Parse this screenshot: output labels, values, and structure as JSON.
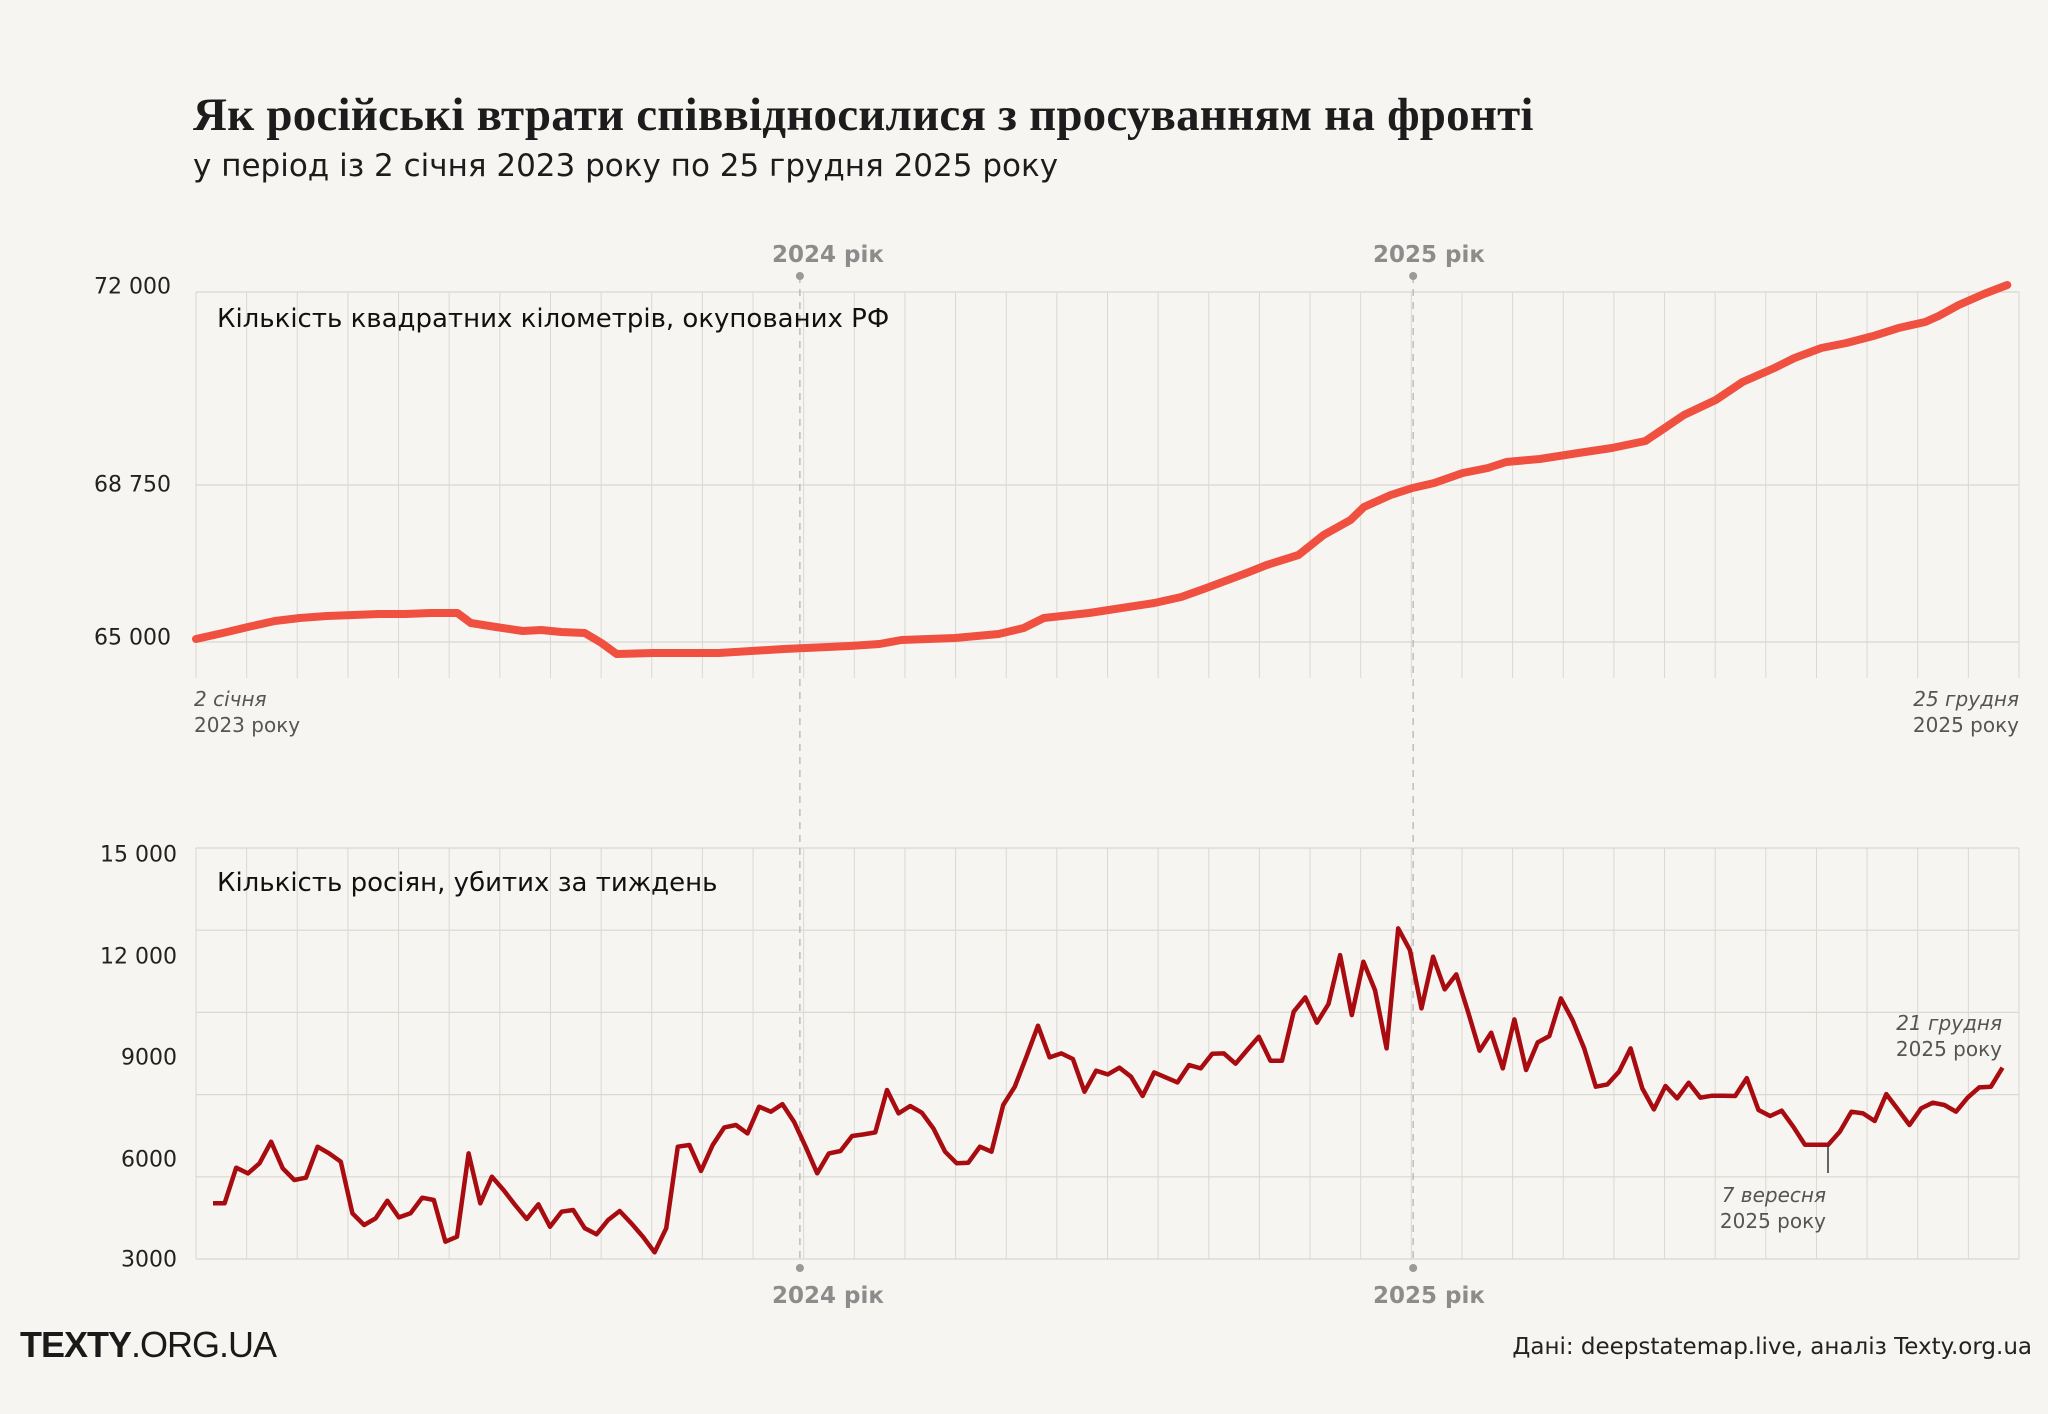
{
  "header": {
    "title": "Як російські втрати співвідносилися з просуванням на фронті",
    "subtitle": "у період із 2 січня 2023 року по 25 грудня 2025 року"
  },
  "year_markers": [
    "2024 рік",
    "2025 рік"
  ],
  "footer": {
    "brand_bold": "TEXTY",
    "brand_rest": ".ORG.UA",
    "source": "Дані: deepstatemap.live, аналіз Texty.org.ua"
  },
  "colors": {
    "background": "#f7f5f1",
    "area_line": "#f0503f",
    "losses_line": "#a80c10",
    "grid": "#d9d8d3",
    "year_marker": "#9a9a9a"
  },
  "chart_data": [
    {
      "type": "line",
      "title": "Кількість квадратних кілометрів, окупованих РФ",
      "x_start_label": {
        "day": "2 січня",
        "year": "2023 року"
      },
      "x_end_label": {
        "day": "25 грудня",
        "year": "2025 року"
      },
      "xlim": [
        "2023-01-02",
        "2025-12-25"
      ],
      "yticks": [
        65000,
        68750,
        72000
      ],
      "ytick_labels": [
        "65 000",
        "68 750",
        "72 000"
      ],
      "grid": true,
      "points": [
        [
          "2023-01-02",
          65072
        ],
        [
          "2023-01-18",
          65215
        ],
        [
          "2023-02-02",
          65358
        ],
        [
          "2023-02-18",
          65502
        ],
        [
          "2023-03-05",
          65573
        ],
        [
          "2023-03-21",
          65621
        ],
        [
          "2023-04-06",
          65645
        ],
        [
          "2023-04-21",
          65669
        ],
        [
          "2023-05-07",
          65669
        ],
        [
          "2023-05-22",
          65693
        ],
        [
          "2023-06-07",
          65693
        ],
        [
          "2023-06-15",
          65454
        ],
        [
          "2023-06-30",
          65358
        ],
        [
          "2023-07-16",
          65263
        ],
        [
          "2023-07-27",
          65287
        ],
        [
          "2023-08-08",
          65239
        ],
        [
          "2023-08-22",
          65215
        ],
        [
          "2023-09-01",
          64976
        ],
        [
          "2023-09-10",
          64713
        ],
        [
          "2023-10-02",
          64737
        ],
        [
          "2023-11-10",
          64737
        ],
        [
          "2023-12-19",
          64833
        ],
        [
          "2024-01-27",
          64904
        ],
        [
          "2024-02-14",
          64952
        ],
        [
          "2024-02-27",
          65048
        ],
        [
          "2024-03-30",
          65096
        ],
        [
          "2024-04-25",
          65191
        ],
        [
          "2024-05-10",
          65334
        ],
        [
          "2024-05-22",
          65573
        ],
        [
          "2024-06-18",
          65693
        ],
        [
          "2024-07-27",
          65932
        ],
        [
          "2024-08-12",
          66075
        ],
        [
          "2024-08-27",
          66290
        ],
        [
          "2024-09-20",
          66648
        ],
        [
          "2024-10-02",
          66839
        ],
        [
          "2024-10-21",
          67078
        ],
        [
          "2024-11-05",
          67556
        ],
        [
          "2024-11-21",
          67914
        ],
        [
          "2024-11-29",
          68225
        ],
        [
          "2024-12-15",
          68511
        ],
        [
          "2024-12-28",
          68678
        ],
        [
          "2025-01-10",
          68784
        ],
        [
          "2025-01-27",
          68952
        ],
        [
          "2025-02-11",
          69036
        ],
        [
          "2025-02-22",
          69137
        ],
        [
          "2025-03-14",
          69188
        ],
        [
          "2025-04-06",
          69289
        ],
        [
          "2025-04-26",
          69373
        ],
        [
          "2025-05-16",
          69491
        ],
        [
          "2025-05-24",
          69642
        ],
        [
          "2025-06-08",
          69929
        ],
        [
          "2025-06-27",
          70181
        ],
        [
          "2025-07-13",
          70485
        ],
        [
          "2025-08-01",
          70720
        ],
        [
          "2025-08-13",
          70889
        ],
        [
          "2025-08-29",
          71057
        ],
        [
          "2025-09-13",
          71141
        ],
        [
          "2025-09-29",
          71259
        ],
        [
          "2025-10-14",
          71393
        ],
        [
          "2025-10-30",
          71494
        ],
        [
          "2025-11-07",
          71596
        ],
        [
          "2025-11-19",
          71781
        ],
        [
          "2025-12-04",
          71966
        ],
        [
          "2025-12-18",
          72118
        ]
      ]
    },
    {
      "type": "line",
      "title": "Кількість росіян, убитих за тиждень",
      "frequency": "weekly",
      "yticks": [
        3000,
        6000,
        9000,
        12000,
        15000
      ],
      "ytick_labels": [
        "3000",
        "6000",
        "9000",
        "12 000",
        "15 000"
      ],
      "ylim": [
        3000,
        15000
      ],
      "grid": true,
      "annotations": [
        {
          "day": "7 вересня",
          "year": "2025 року"
        },
        {
          "day": "21 грудня",
          "year": "2025 року"
        }
      ],
      "values": [
        4625,
        4625,
        5666,
        5500,
        5793,
        6425,
        5647,
        5306,
        5374,
        6279,
        6084,
        5841,
        4333,
        3992,
        4187,
        4703,
        4216,
        4333,
        4790,
        4722,
        3506,
        3652,
        6084,
        4625,
        5403,
        5014,
        4576,
        4168,
        4596,
        3944,
        4382,
        4430,
        3895,
        3720,
        4138,
        4401,
        4041,
        3652,
        3195,
        3895,
        6279,
        6328,
        5569,
        6328,
        6843,
        6911,
        6668,
        7447,
        7301,
        7524,
        7009,
        6279,
        5501,
        6084,
        6153,
        6590,
        6639,
        6697,
        7933,
        7252,
        7466,
        7271,
        6814,
        6133,
        5793,
        5812,
        6279,
        6133,
        7495,
        8030,
        8906,
        9811,
        8887,
        9003,
        8838,
        7885,
        8497,
        8390,
        8585,
        8322,
        7758,
        8449,
        8303,
        8157,
        8663,
        8566,
        8994,
        9003,
        8702,
        9101,
        9490,
        8790,
        8790,
        10220,
        10638,
        9899,
        10444,
        11874,
        10122,
        11679,
        10852,
        9149,
        12652,
        12020,
        10317,
        11825,
        10872,
        11310,
        10220,
        9081,
        9607,
        8566,
        9996,
        8517,
        9325,
        9509,
        10609,
        9977,
        9149,
        8030,
        8098,
        8468,
        9149,
        7982,
        7369,
        8050,
        7690,
        8147,
        7709,
        7768,
        7768,
        7758,
        8283,
        7349,
        7174,
        7330,
        6863,
        6337,
        6337,
        6337,
        6717,
        7301,
        7252,
        7028,
        7816,
        7369,
        6911,
        7398,
        7563,
        7495,
        7301,
        7709,
        8011,
        8030,
        8585
      ]
    }
  ]
}
